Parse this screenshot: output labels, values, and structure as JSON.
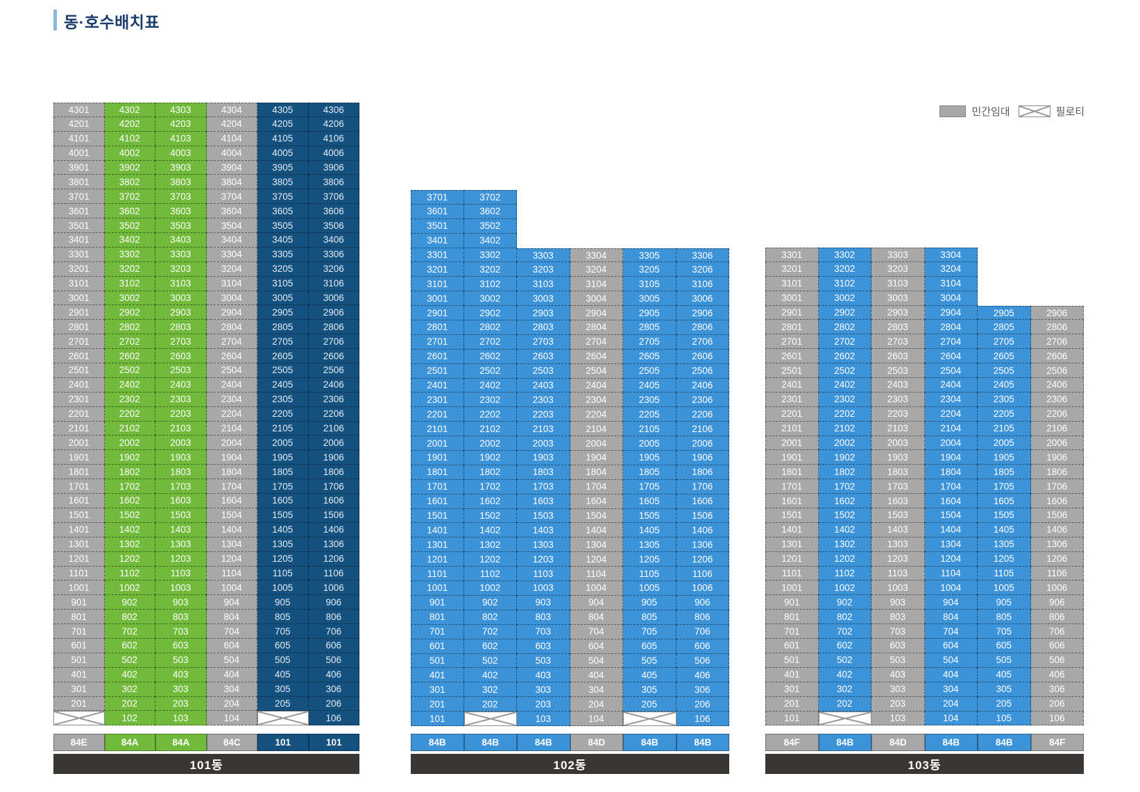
{
  "title": "동·호수배치표",
  "legend": {
    "rental_label": "민간임대",
    "piloti_label": "필로티"
  },
  "colors": {
    "gray": "#a8a8a8",
    "green": "#72ba3c",
    "navy": "#15517e",
    "blue": "#3d93d8",
    "footer": "#3a3633",
    "title": "#1b3e6d",
    "accent_bar": "#88b8dc"
  },
  "buildings": [
    {
      "name": "101동",
      "col_colors": [
        "gray",
        "green",
        "green",
        "gray",
        "navy",
        "navy"
      ],
      "types": [
        "84E",
        "84A",
        "84A",
        "84C",
        "101",
        "101"
      ],
      "rows": [
        [
          "4301",
          "4302",
          "4303",
          "4304",
          "4305",
          "4306"
        ],
        [
          "4201",
          "4202",
          "4203",
          "4204",
          "4205",
          "4206"
        ],
        [
          "4101",
          "4102",
          "4103",
          "4104",
          "4105",
          "4106"
        ],
        [
          "4001",
          "4002",
          "4003",
          "4004",
          "4005",
          "4006"
        ],
        [
          "3901",
          "3902",
          "3903",
          "3904",
          "3905",
          "3906"
        ],
        [
          "3801",
          "3802",
          "3803",
          "3804",
          "3805",
          "3806"
        ],
        [
          "3701",
          "3702",
          "3703",
          "3704",
          "3705",
          "3706"
        ],
        [
          "3601",
          "3602",
          "3603",
          "3604",
          "3605",
          "3606"
        ],
        [
          "3501",
          "3502",
          "3503",
          "3504",
          "3505",
          "3506"
        ],
        [
          "3401",
          "3402",
          "3403",
          "3404",
          "3405",
          "3406"
        ],
        [
          "3301",
          "3302",
          "3303",
          "3304",
          "3305",
          "3306"
        ],
        [
          "3201",
          "3202",
          "3203",
          "3204",
          "3205",
          "3206"
        ],
        [
          "3101",
          "3102",
          "3103",
          "3104",
          "3105",
          "3106"
        ],
        [
          "3001",
          "3002",
          "3003",
          "3004",
          "3005",
          "3006"
        ],
        [
          "2901",
          "2902",
          "2903",
          "2904",
          "2905",
          "2906"
        ],
        [
          "2801",
          "2802",
          "2803",
          "2804",
          "2805",
          "2806"
        ],
        [
          "2701",
          "2702",
          "2703",
          "2704",
          "2705",
          "2706"
        ],
        [
          "2601",
          "2602",
          "2603",
          "2604",
          "2605",
          "2606"
        ],
        [
          "2501",
          "2502",
          "2503",
          "2504",
          "2505",
          "2506"
        ],
        [
          "2401",
          "2402",
          "2403",
          "2404",
          "2405",
          "2406"
        ],
        [
          "2301",
          "2302",
          "2303",
          "2304",
          "2305",
          "2306"
        ],
        [
          "2201",
          "2202",
          "2203",
          "2204",
          "2205",
          "2206"
        ],
        [
          "2101",
          "2102",
          "2103",
          "2104",
          "2105",
          "2106"
        ],
        [
          "2001",
          "2002",
          "2003",
          "2004",
          "2005",
          "2006"
        ],
        [
          "1901",
          "1902",
          "1903",
          "1904",
          "1905",
          "1906"
        ],
        [
          "1801",
          "1802",
          "1803",
          "1804",
          "1805",
          "1806"
        ],
        [
          "1701",
          "1702",
          "1703",
          "1704",
          "1705",
          "1706"
        ],
        [
          "1601",
          "1602",
          "1603",
          "1604",
          "1605",
          "1606"
        ],
        [
          "1501",
          "1502",
          "1503",
          "1504",
          "1505",
          "1506"
        ],
        [
          "1401",
          "1402",
          "1403",
          "1404",
          "1405",
          "1406"
        ],
        [
          "1301",
          "1302",
          "1303",
          "1304",
          "1305",
          "1306"
        ],
        [
          "1201",
          "1202",
          "1203",
          "1204",
          "1205",
          "1206"
        ],
        [
          "1101",
          "1102",
          "1103",
          "1104",
          "1105",
          "1106"
        ],
        [
          "1001",
          "1002",
          "1003",
          "1004",
          "1005",
          "1006"
        ],
        [
          "901",
          "902",
          "903",
          "904",
          "905",
          "906"
        ],
        [
          "801",
          "802",
          "803",
          "804",
          "805",
          "806"
        ],
        [
          "701",
          "702",
          "703",
          "704",
          "705",
          "706"
        ],
        [
          "601",
          "602",
          "603",
          "604",
          "605",
          "606"
        ],
        [
          "501",
          "502",
          "503",
          "504",
          "505",
          "506"
        ],
        [
          "401",
          "402",
          "403",
          "404",
          "405",
          "406"
        ],
        [
          "301",
          "302",
          "303",
          "304",
          "305",
          "306"
        ],
        [
          "201",
          "202",
          "203",
          "204",
          "205",
          "206"
        ],
        [
          "X",
          "102",
          "103",
          "104",
          "X",
          "106"
        ]
      ]
    },
    {
      "name": "102동",
      "col_colors": [
        "blue",
        "blue",
        "blue",
        "gray",
        "blue",
        "blue"
      ],
      "types": [
        "84B",
        "84B",
        "84B",
        "84D",
        "84B",
        "84B"
      ],
      "rows": [
        [
          "3701",
          "3702",
          "",
          "",
          "",
          ""
        ],
        [
          "3601",
          "3602",
          "",
          "",
          "",
          ""
        ],
        [
          "3501",
          "3502",
          "",
          "",
          "",
          ""
        ],
        [
          "3401",
          "3402",
          "",
          "",
          "",
          ""
        ],
        [
          "3301",
          "3302",
          "3303",
          "3304",
          "3305",
          "3306"
        ],
        [
          "3201",
          "3202",
          "3203",
          "3204",
          "3205",
          "3206"
        ],
        [
          "3101",
          "3102",
          "3103",
          "3104",
          "3105",
          "3106"
        ],
        [
          "3001",
          "3002",
          "3003",
          "3004",
          "3005",
          "3006"
        ],
        [
          "2901",
          "2902",
          "2903",
          "2904",
          "2905",
          "2906"
        ],
        [
          "2801",
          "2802",
          "2803",
          "2804",
          "2805",
          "2806"
        ],
        [
          "2701",
          "2702",
          "2703",
          "2704",
          "2705",
          "2706"
        ],
        [
          "2601",
          "2602",
          "2603",
          "2604",
          "2605",
          "2606"
        ],
        [
          "2501",
          "2502",
          "2503",
          "2504",
          "2505",
          "2506"
        ],
        [
          "2401",
          "2402",
          "2403",
          "2404",
          "2405",
          "2406"
        ],
        [
          "2301",
          "2302",
          "2303",
          "2304",
          "2305",
          "2306"
        ],
        [
          "2201",
          "2202",
          "2203",
          "2204",
          "2205",
          "2206"
        ],
        [
          "2101",
          "2102",
          "2103",
          "2104",
          "2105",
          "2106"
        ],
        [
          "2001",
          "2002",
          "2003",
          "2004",
          "2005",
          "2006"
        ],
        [
          "1901",
          "1902",
          "1903",
          "1904",
          "1905",
          "1906"
        ],
        [
          "1801",
          "1802",
          "1803",
          "1804",
          "1805",
          "1806"
        ],
        [
          "1701",
          "1702",
          "1703",
          "1704",
          "1705",
          "1706"
        ],
        [
          "1601",
          "1602",
          "1603",
          "1604",
          "1605",
          "1606"
        ],
        [
          "1501",
          "1502",
          "1503",
          "1504",
          "1505",
          "1506"
        ],
        [
          "1401",
          "1402",
          "1403",
          "1404",
          "1405",
          "1406"
        ],
        [
          "1301",
          "1302",
          "1303",
          "1304",
          "1305",
          "1306"
        ],
        [
          "1201",
          "1202",
          "1203",
          "1204",
          "1205",
          "1206"
        ],
        [
          "1101",
          "1102",
          "1103",
          "1104",
          "1105",
          "1106"
        ],
        [
          "1001",
          "1002",
          "1003",
          "1004",
          "1005",
          "1006"
        ],
        [
          "901",
          "902",
          "903",
          "904",
          "905",
          "906"
        ],
        [
          "801",
          "802",
          "803",
          "804",
          "805",
          "806"
        ],
        [
          "701",
          "702",
          "703",
          "704",
          "705",
          "706"
        ],
        [
          "601",
          "602",
          "603",
          "604",
          "605",
          "606"
        ],
        [
          "501",
          "502",
          "503",
          "504",
          "505",
          "506"
        ],
        [
          "401",
          "402",
          "403",
          "404",
          "405",
          "406"
        ],
        [
          "301",
          "302",
          "303",
          "304",
          "305",
          "306"
        ],
        [
          "201",
          "202",
          "203",
          "204",
          "205",
          "206"
        ],
        [
          "101",
          "X",
          "103",
          "104",
          "X",
          "106"
        ]
      ]
    },
    {
      "name": "103동",
      "col_colors": [
        "gray",
        "blue",
        "gray",
        "blue",
        "blue",
        "gray"
      ],
      "types": [
        "84F",
        "84B",
        "84D",
        "84B",
        "84B",
        "84F"
      ],
      "rows": [
        [
          "3301",
          "3302",
          "3303",
          "3304",
          "",
          ""
        ],
        [
          "3201",
          "3202",
          "3203",
          "3204",
          "",
          ""
        ],
        [
          "3101",
          "3102",
          "3103",
          "3104",
          "",
          ""
        ],
        [
          "3001",
          "3002",
          "3003",
          "3004",
          "",
          ""
        ],
        [
          "2901",
          "2902",
          "2903",
          "2904",
          "2905",
          "2906"
        ],
        [
          "2801",
          "2802",
          "2803",
          "2804",
          "2805",
          "2806"
        ],
        [
          "2701",
          "2702",
          "2703",
          "2704",
          "2705",
          "2706"
        ],
        [
          "2601",
          "2602",
          "2603",
          "2604",
          "2605",
          "2606"
        ],
        [
          "2501",
          "2502",
          "2503",
          "2504",
          "2505",
          "2506"
        ],
        [
          "2401",
          "2402",
          "2403",
          "2404",
          "2405",
          "2406"
        ],
        [
          "2301",
          "2302",
          "2303",
          "2304",
          "2305",
          "2306"
        ],
        [
          "2201",
          "2202",
          "2203",
          "2204",
          "2205",
          "2206"
        ],
        [
          "2101",
          "2102",
          "2103",
          "2104",
          "2105",
          "2106"
        ],
        [
          "2001",
          "2002",
          "2003",
          "2004",
          "2005",
          "2006"
        ],
        [
          "1901",
          "1902",
          "1903",
          "1904",
          "1905",
          "1906"
        ],
        [
          "1801",
          "1802",
          "1803",
          "1804",
          "1805",
          "1806"
        ],
        [
          "1701",
          "1702",
          "1703",
          "1704",
          "1705",
          "1706"
        ],
        [
          "1601",
          "1602",
          "1603",
          "1604",
          "1605",
          "1606"
        ],
        [
          "1501",
          "1502",
          "1503",
          "1504",
          "1505",
          "1506"
        ],
        [
          "1401",
          "1402",
          "1403",
          "1404",
          "1405",
          "1406"
        ],
        [
          "1301",
          "1302",
          "1303",
          "1304",
          "1305",
          "1306"
        ],
        [
          "1201",
          "1202",
          "1203",
          "1204",
          "1205",
          "1206"
        ],
        [
          "1101",
          "1102",
          "1103",
          "1104",
          "1105",
          "1106"
        ],
        [
          "1001",
          "1002",
          "1003",
          "1004",
          "1005",
          "1006"
        ],
        [
          "901",
          "902",
          "903",
          "904",
          "905",
          "906"
        ],
        [
          "801",
          "802",
          "803",
          "804",
          "805",
          "806"
        ],
        [
          "701",
          "702",
          "703",
          "704",
          "705",
          "706"
        ],
        [
          "601",
          "602",
          "603",
          "604",
          "605",
          "606"
        ],
        [
          "501",
          "502",
          "503",
          "504",
          "505",
          "506"
        ],
        [
          "401",
          "402",
          "403",
          "404",
          "405",
          "406"
        ],
        [
          "301",
          "302",
          "303",
          "304",
          "305",
          "306"
        ],
        [
          "201",
          "202",
          "203",
          "204",
          "205",
          "206"
        ],
        [
          "101",
          "X",
          "103",
          "104",
          "105",
          "106"
        ]
      ]
    }
  ]
}
